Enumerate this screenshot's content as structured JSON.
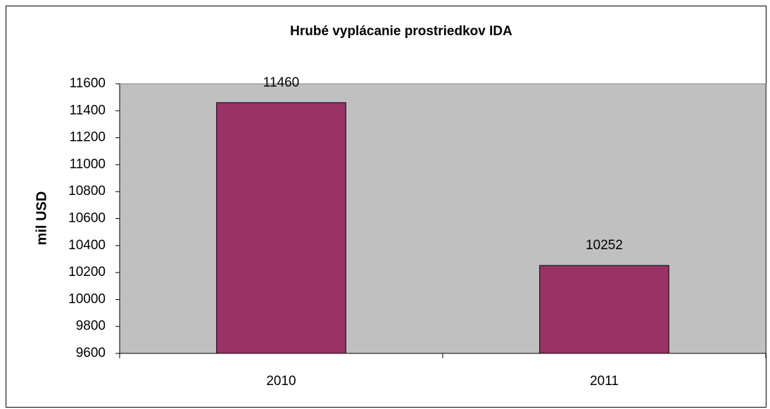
{
  "chart_data": {
    "type": "bar",
    "title": "Hrubé vyplácanie prostriedkov IDA",
    "y_label": "mil USD",
    "categories": [
      "2010",
      "2011"
    ],
    "values": [
      11460,
      10252
    ],
    "color": "#993366",
    "plot_background": "#c0c0c0",
    "ylim": [
      9600,
      11600
    ],
    "yticks": [
      9600,
      9800,
      10000,
      10200,
      10400,
      10600,
      10800,
      11000,
      11200,
      11400,
      11600
    ],
    "grid": false
  }
}
